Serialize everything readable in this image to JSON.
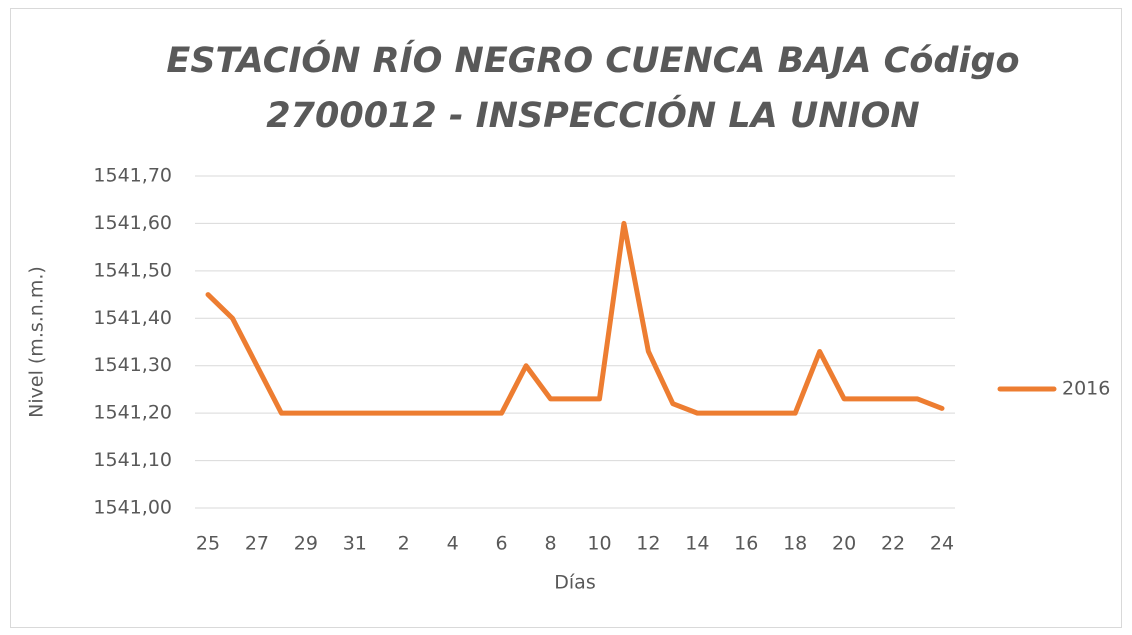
{
  "chart_data": {
    "type": "line",
    "title": [
      "ESTACIÓN RÍO NEGRO CUENCA BAJA Código",
      "2700012 - INSPECCIÓN LA  UNION"
    ],
    "x_label": "Días",
    "y_label": "Nivel (m.s.n.m.)",
    "categories": [
      "25",
      null,
      "27",
      null,
      "29",
      null,
      "31",
      null,
      "2",
      null,
      "4",
      null,
      "6",
      null,
      "8",
      null,
      "10",
      null,
      "12",
      null,
      "14",
      null,
      "16",
      null,
      "18",
      null,
      "20",
      null,
      "22",
      null,
      "24"
    ],
    "series": [
      {
        "name": "2016",
        "color": "#ed7d31",
        "values": [
          1541.45,
          1541.4,
          1541.3,
          1541.2,
          1541.2,
          1541.2,
          1541.2,
          1541.2,
          1541.2,
          1541.2,
          1541.2,
          1541.2,
          1541.2,
          1541.3,
          1541.23,
          1541.23,
          1541.23,
          1541.6,
          1541.33,
          1541.22,
          1541.2,
          1541.2,
          1541.2,
          1541.2,
          1541.2,
          1541.33,
          1541.23,
          1541.23,
          1541.23,
          1541.23,
          1541.21
        ]
      }
    ],
    "ylim": [
      1541.0,
      1541.7
    ],
    "yticks": [
      {
        "value": 1541.0,
        "label": "1541,00"
      },
      {
        "value": 1541.1,
        "label": "1541,10"
      },
      {
        "value": 1541.2,
        "label": "1541,20"
      },
      {
        "value": 1541.3,
        "label": "1541,30"
      },
      {
        "value": 1541.4,
        "label": "1541,40"
      },
      {
        "value": 1541.5,
        "label": "1541,50"
      },
      {
        "value": 1541.6,
        "label": "1541,60"
      },
      {
        "value": 1541.7,
        "label": "1541,70"
      }
    ],
    "grid": true,
    "legend": "right"
  }
}
